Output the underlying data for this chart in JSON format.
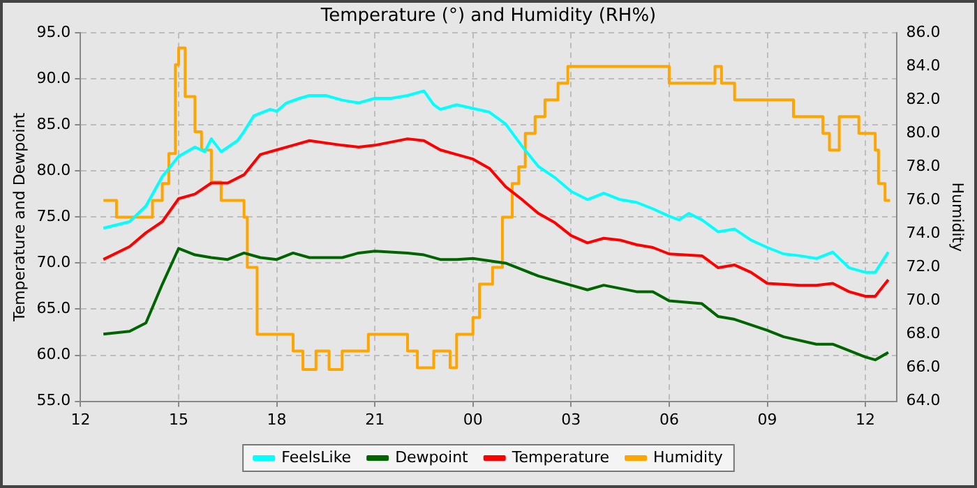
{
  "chart_data": {
    "type": "line",
    "title": "Temperature (°) and Humidity (RH%)",
    "ylabel": "Temperature and Dewpoint",
    "y2label": "Humidity",
    "xlim": [
      12,
      36.95
    ],
    "xticks": [
      {
        "value": 12,
        "label": "12"
      },
      {
        "value": 15,
        "label": "15"
      },
      {
        "value": 18,
        "label": "18"
      },
      {
        "value": 21,
        "label": "21"
      },
      {
        "value": 24,
        "label": "00"
      },
      {
        "value": 27,
        "label": "03"
      },
      {
        "value": 30,
        "label": "06"
      },
      {
        "value": 33,
        "label": "09"
      },
      {
        "value": 36,
        "label": "12"
      }
    ],
    "ylim": [
      55,
      95
    ],
    "yticks": [
      {
        "value": 55,
        "label": "55.0"
      },
      {
        "value": 60,
        "label": "60.0"
      },
      {
        "value": 65,
        "label": "65.0"
      },
      {
        "value": 70,
        "label": "70.0"
      },
      {
        "value": 75,
        "label": "75.0"
      },
      {
        "value": 80,
        "label": "80.0"
      },
      {
        "value": 85,
        "label": "85.0"
      },
      {
        "value": 90,
        "label": "90.0"
      },
      {
        "value": 95,
        "label": "95.0"
      }
    ],
    "y2lim": [
      64,
      86
    ],
    "y2ticks": [
      {
        "value": 64,
        "label": "64.0"
      },
      {
        "value": 66,
        "label": "66.0"
      },
      {
        "value": 68,
        "label": "68.0"
      },
      {
        "value": 70,
        "label": "70.0"
      },
      {
        "value": 72,
        "label": "72.0"
      },
      {
        "value": 74,
        "label": "74.0"
      },
      {
        "value": 76,
        "label": "76.0"
      },
      {
        "value": 78,
        "label": "78.0"
      },
      {
        "value": 80,
        "label": "80.0"
      },
      {
        "value": 82,
        "label": "82.0"
      },
      {
        "value": 84,
        "label": "84.0"
      },
      {
        "value": 86,
        "label": "86.0"
      }
    ],
    "grid": true,
    "legend": "bottom",
    "marker": "none",
    "line_style": "solid",
    "series": [
      {
        "name": "FeelsLike",
        "color": "#00ffff",
        "x": [
          12.7,
          13.5,
          14,
          14.5,
          15,
          15.5,
          15.8,
          16,
          16.3,
          16.8,
          17,
          17.3,
          17.8,
          18,
          18.3,
          18.7,
          19,
          19.5,
          20,
          20.5,
          21,
          21.5,
          22,
          22.5,
          22.8,
          23,
          23.5,
          24,
          24.5,
          25,
          25.5,
          26,
          26.5,
          27,
          27.5,
          28,
          28.5,
          29,
          29.5,
          30,
          30.3,
          30.6,
          31,
          31.5,
          32,
          32.5,
          33,
          33.5,
          34,
          34.5,
          35,
          35.5,
          36,
          36.3,
          36.7
        ],
        "values": [
          73.8,
          74.5,
          76.2,
          79.4,
          81.6,
          82.6,
          82.1,
          83.5,
          82.1,
          83.3,
          84.3,
          86,
          86.7,
          86.5,
          87.4,
          87.9,
          88.2,
          88.2,
          87.7,
          87.4,
          87.9,
          87.9,
          88.2,
          88.7,
          87.2,
          86.7,
          87.2,
          86.8,
          86.4,
          85.1,
          82.7,
          80.5,
          79.3,
          77.8,
          76.9,
          77.6,
          76.9,
          76.6,
          75.9,
          75.1,
          74.7,
          75.4,
          74.7,
          73.4,
          73.7,
          72.5,
          71.7,
          71,
          70.8,
          70.5,
          71.2,
          69.5,
          69,
          69,
          71.2
        ]
      },
      {
        "name": "Dewpoint",
        "color": "#006400",
        "x": [
          12.7,
          13.5,
          14,
          14.5,
          15,
          15.5,
          16,
          16.5,
          17,
          17.5,
          18,
          18.5,
          19,
          20,
          20.5,
          21,
          22,
          22.5,
          23,
          23.5,
          24,
          25,
          25.5,
          26,
          27,
          27.5,
          28,
          29,
          29.5,
          30,
          31,
          31.5,
          32,
          33,
          33.5,
          34.5,
          35,
          35.5,
          36,
          36.3,
          36.7
        ],
        "values": [
          62.3,
          62.6,
          63.5,
          67.7,
          71.6,
          70.9,
          70.6,
          70.4,
          71.1,
          70.6,
          70.4,
          71.1,
          70.6,
          70.6,
          71.1,
          71.3,
          71.1,
          70.9,
          70.4,
          70.4,
          70.5,
          70,
          69.3,
          68.6,
          67.6,
          67.1,
          67.6,
          66.9,
          66.9,
          65.9,
          65.6,
          64.2,
          63.9,
          62.7,
          62,
          61.2,
          61.2,
          60.5,
          59.8,
          59.5,
          60.3
        ]
      },
      {
        "name": "Temperature",
        "color": "#ff0000",
        "x": [
          12.7,
          13.5,
          14,
          14.5,
          15,
          15.5,
          16,
          16.5,
          17,
          17.5,
          18,
          18.5,
          19,
          20,
          20.5,
          21,
          22,
          22.5,
          23,
          23.5,
          24,
          24.5,
          25,
          25.5,
          26,
          26.5,
          27,
          27.5,
          28,
          28.5,
          29,
          29.5,
          30,
          31,
          31.5,
          32,
          32.5,
          33,
          34,
          34.5,
          35,
          35.5,
          36,
          36.3,
          36.7
        ],
        "values": [
          70.4,
          71.8,
          73.3,
          74.5,
          77,
          77.5,
          78.7,
          78.7,
          79.6,
          81.8,
          82.3,
          82.8,
          83.3,
          82.8,
          82.6,
          82.8,
          83.5,
          83.3,
          82.3,
          81.8,
          81.3,
          80.3,
          78.3,
          76.9,
          75.4,
          74.4,
          73,
          72.2,
          72.7,
          72.5,
          72,
          71.7,
          71,
          70.8,
          69.5,
          69.8,
          69,
          67.8,
          67.6,
          67.6,
          67.8,
          66.9,
          66.4,
          66.4,
          68.2
        ]
      },
      {
        "name": "Humidity",
        "color": "#ffa500",
        "type": "step",
        "axis": "y2",
        "x": [
          12.7,
          13.1,
          13.5,
          14.2,
          14.5,
          14.7,
          14.9,
          15,
          15.2,
          15.5,
          15.7,
          16,
          16.3,
          17,
          17.1,
          17.4,
          18.5,
          18.8,
          19.2,
          19.6,
          20,
          20.8,
          22,
          22.3,
          22.8,
          23.3,
          23.5,
          24,
          24.2,
          24.6,
          24.9,
          25.2,
          25.4,
          25.6,
          25.9,
          26.2,
          26.6,
          26.9,
          30,
          31.4,
          31.6,
          32,
          33.8,
          34.7,
          34.9,
          35.2,
          35.8,
          36.3,
          36.4,
          36.6,
          36.75
        ],
        "values": [
          76,
          75,
          75,
          76,
          77,
          78.8,
          84.1,
          85.1,
          82.2,
          80.1,
          79,
          77.1,
          76,
          75,
          72,
          68,
          67,
          65.9,
          67,
          65.9,
          67,
          68,
          67,
          66,
          67,
          66,
          68,
          69,
          71,
          72,
          75,
          77,
          78,
          80,
          81,
          82,
          83,
          84,
          83,
          84,
          83,
          82,
          81,
          80,
          79,
          81,
          80,
          79,
          77,
          76,
          76
        ]
      }
    ]
  }
}
